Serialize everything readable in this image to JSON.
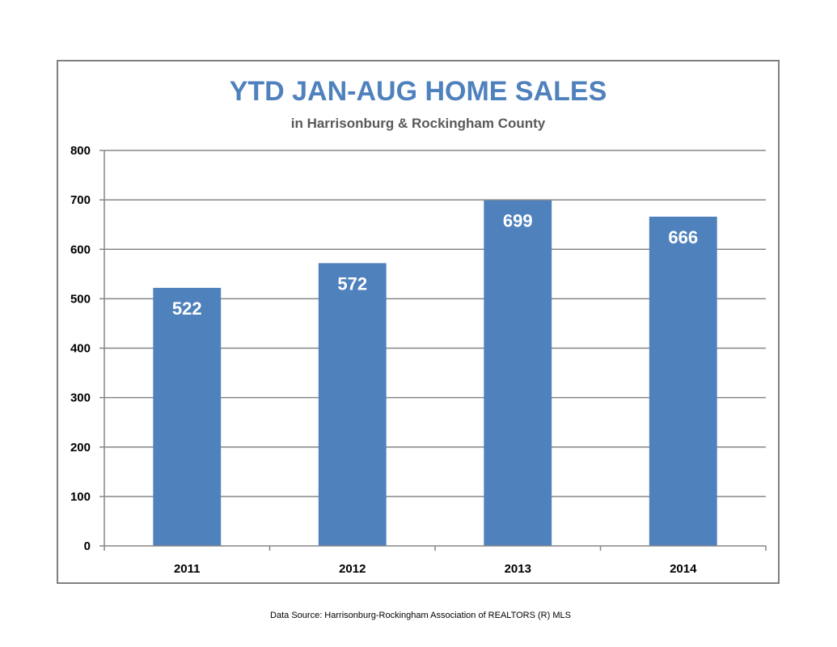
{
  "chart_data": {
    "type": "bar",
    "title": "YTD JAN-AUG HOME SALES",
    "subtitle": "in Harrisonburg & Rockingham County",
    "categories": [
      "2011",
      "2012",
      "2013",
      "2014"
    ],
    "values": [
      522,
      572,
      699,
      666
    ],
    "data_labels": [
      "522",
      "572",
      "699",
      "666"
    ],
    "xlabel": "",
    "ylabel": "",
    "ylim": [
      0,
      800
    ],
    "y_ticks": [
      0,
      100,
      200,
      300,
      400,
      500,
      600,
      700,
      800
    ],
    "grid": true,
    "legend": "none",
    "bar_color": "#4f81bd"
  },
  "footer": {
    "source": "Data Source: Harrisonburg-Rockingham Association of REALTORS (R) MLS"
  }
}
